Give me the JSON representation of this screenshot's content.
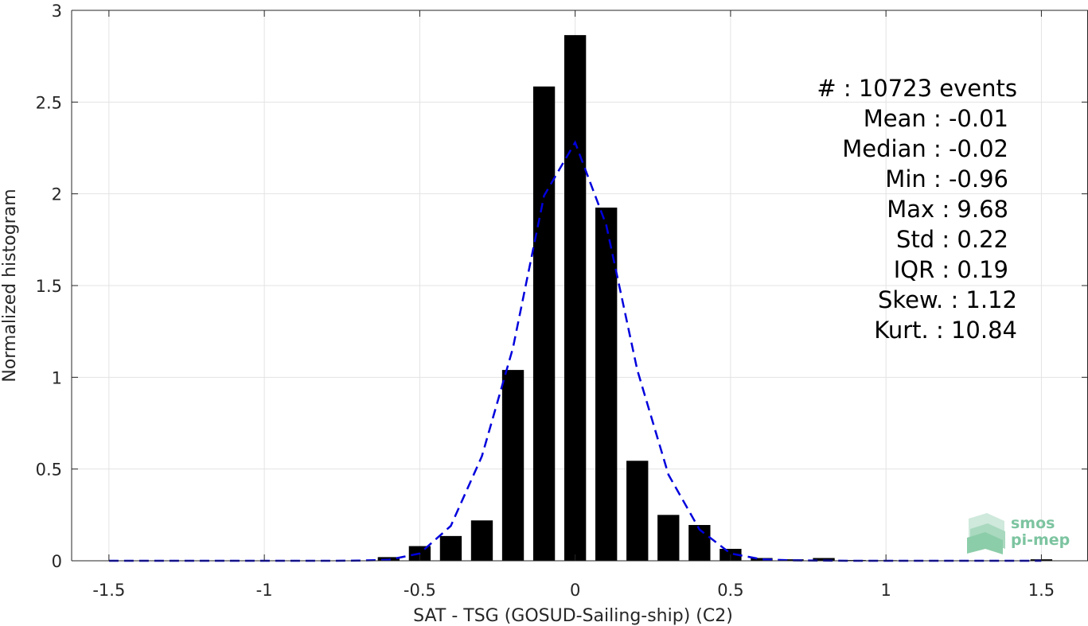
{
  "chart_data": {
    "type": "bar",
    "xlabel": "SAT - TSG (GOSUD-Sailing-ship) (C2)",
    "ylabel": "Normalized histogram",
    "xlim": [
      -1.62,
      1.65
    ],
    "ylim": [
      0,
      3
    ],
    "xticks": [
      -1.5,
      -1,
      -0.5,
      0,
      0.5,
      1,
      1.5
    ],
    "xtick_labels": [
      "-1.5",
      "-1",
      "-0.5",
      "0",
      "0.5",
      "1",
      "1.5"
    ],
    "yticks": [
      0,
      0.5,
      1,
      1.5,
      2,
      2.5,
      3
    ],
    "ytick_labels": [
      "0",
      "0.5",
      "1",
      "1.5",
      "2",
      "2.5",
      "3"
    ],
    "grid": true,
    "bar_width": 0.07,
    "bars": {
      "x": [
        -1.5,
        -1.4,
        -1.3,
        -1.2,
        -1.1,
        -1.0,
        -0.9,
        -0.8,
        -0.7,
        -0.6,
        -0.5,
        -0.4,
        -0.3,
        -0.2,
        -0.1,
        0.0,
        0.1,
        0.2,
        0.3,
        0.4,
        0.5,
        0.6,
        0.7,
        0.8,
        0.9,
        1.0,
        1.1,
        1.2,
        1.3,
        1.4,
        1.5
      ],
      "values": [
        0,
        0,
        0,
        0,
        0,
        0,
        0,
        0,
        0,
        0.02,
        0.08,
        0.135,
        0.22,
        1.04,
        2.585,
        2.865,
        1.925,
        0.545,
        0.25,
        0.195,
        0.065,
        0.015,
        0.008,
        0.015,
        0.004,
        0.003,
        0.002,
        0.002,
        0.002,
        0.002,
        0.008
      ],
      "color": "#000000"
    },
    "fit_curve": {
      "style": "dashed",
      "color": "#0000dd",
      "x": [
        -1.5,
        -1.4,
        -1.3,
        -1.2,
        -1.1,
        -1.0,
        -0.9,
        -0.8,
        -0.7,
        -0.6,
        -0.5,
        -0.4,
        -0.3,
        -0.2,
        -0.1,
        0.0,
        0.1,
        0.2,
        0.3,
        0.4,
        0.5,
        0.6,
        0.7,
        0.8,
        0.9,
        1.0,
        1.1,
        1.2,
        1.3,
        1.4,
        1.5
      ],
      "values": [
        0,
        0,
        0,
        0,
        0,
        0,
        0,
        0,
        0.001,
        0.005,
        0.04,
        0.19,
        0.57,
        1.16,
        1.99,
        2.28,
        1.83,
        1.04,
        0.47,
        0.17,
        0.04,
        0.008,
        0.002,
        0.001,
        0,
        0,
        0,
        0,
        0,
        0,
        0
      ]
    },
    "stats": [
      {
        "label": "#  : 10723 events"
      },
      {
        "label": "Mean : -0.01"
      },
      {
        "label": "Median : -0.02"
      },
      {
        "label": "Min : -0.96"
      },
      {
        "label": "Max : 9.68"
      },
      {
        "label": "Std : 0.22"
      },
      {
        "label": "IQR : 0.19"
      },
      {
        "label": "Skew. : 1.12"
      },
      {
        "label": "Kurt. : 10.84"
      }
    ],
    "stats_placement": "top-right"
  },
  "logo": {
    "line1": "smos",
    "line2": "pi-mep",
    "color": "#7cc4a0"
  }
}
